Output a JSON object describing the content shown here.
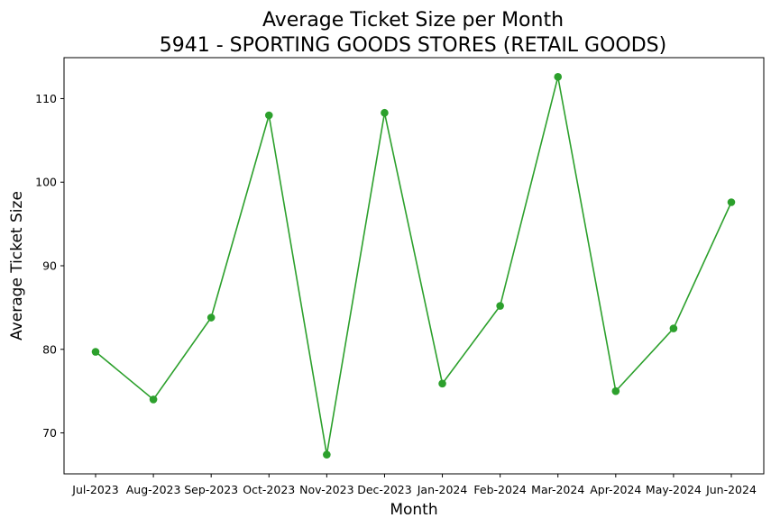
{
  "chart_data": {
    "type": "line",
    "title": "Average Ticket Size per Month",
    "subtitle": "5941 - SPORTING GOODS STORES (RETAIL GOODS)",
    "xlabel": "Month",
    "ylabel": "Average Ticket Size",
    "categories": [
      "Jul-2023",
      "Aug-2023",
      "Sep-2023",
      "Oct-2023",
      "Nov-2023",
      "Dec-2023",
      "Jan-2024",
      "Feb-2024",
      "Mar-2024",
      "Apr-2024",
      "May-2024",
      "Jun-2024"
    ],
    "series": [
      {
        "values": [
          79.7,
          74.0,
          83.8,
          108.0,
          67.4,
          108.3,
          75.9,
          85.2,
          112.6,
          75.0,
          82.5,
          97.6
        ],
        "color": "#2ca02c",
        "marker": "circle"
      }
    ],
    "yticks": [
      70,
      80,
      90,
      100,
      110
    ],
    "ylim": [
      65.1,
      114.9
    ],
    "grid": false,
    "legend": "none"
  }
}
